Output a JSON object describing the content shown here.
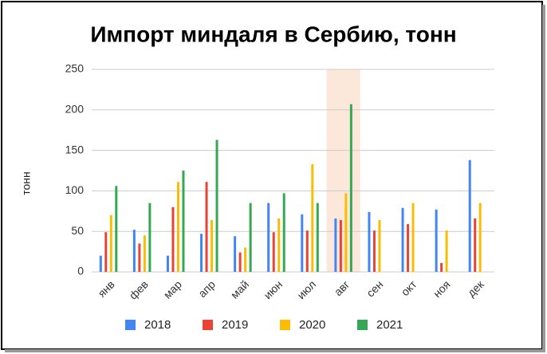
{
  "chart_data": {
    "type": "bar",
    "title": "Импорт миндаля в Сербию, тонн",
    "y_label": "тонн",
    "categories": [
      "янв",
      "фев",
      "мар",
      "апр",
      "май",
      "июн",
      "июл",
      "авг",
      "сен",
      "окт",
      "ноя",
      "дек"
    ],
    "series": [
      {
        "name": "2018",
        "color": "#4285f4",
        "values": [
          20,
          52,
          20,
          47,
          44,
          85,
          71,
          66,
          74,
          79,
          77,
          138
        ]
      },
      {
        "name": "2019",
        "color": "#ea4335",
        "values": [
          49,
          35,
          80,
          111,
          24,
          49,
          51,
          64,
          51,
          59,
          11,
          66
        ]
      },
      {
        "name": "2020",
        "color": "#fbbc04",
        "values": [
          70,
          45,
          111,
          64,
          30,
          66,
          133,
          97,
          64,
          85,
          51,
          85
        ]
      },
      {
        "name": "2021",
        "color": "#34a853",
        "values": [
          106,
          85,
          125,
          163,
          85,
          97,
          85,
          207,
          null,
          null,
          null,
          null
        ]
      }
    ],
    "ylim": [
      0,
      250
    ],
    "yticks": [
      0,
      50,
      100,
      150,
      200,
      250
    ],
    "grid": true,
    "highlight": {
      "category_index": 7,
      "color": "#fce8da"
    }
  }
}
